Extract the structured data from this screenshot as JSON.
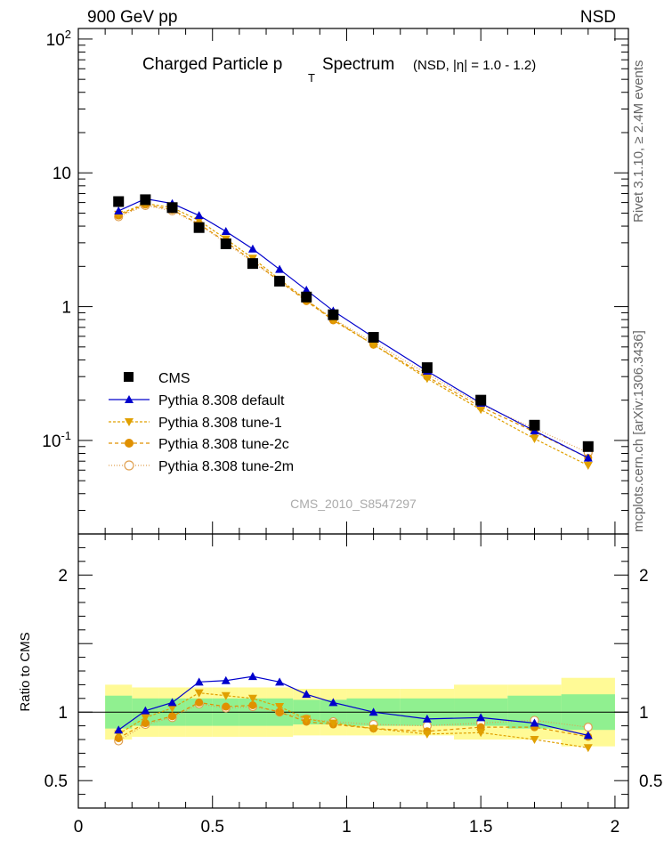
{
  "header": {
    "left": "900 GeV pp",
    "right": "NSD"
  },
  "title": {
    "main": "Charged Particle p",
    "sub": "T",
    "tail": "Spectrum",
    "note": "(NSD, |η| = 1.0 - 1.2)"
  },
  "side": {
    "upper": "Rivet 3.1.10, ≥ 2.4M events",
    "lower": "mcplots.cern.ch [arXiv:1306.3436]"
  },
  "watermark": "CMS_2010_S8547297",
  "colors": {
    "cms": "#000000",
    "default": "#0000cc",
    "tune1": "#e0a000",
    "tune2c": "#e09000",
    "tune2m": "#e0a050",
    "band_inner": "#90f090",
    "band_outer": "#fffa96"
  },
  "chart_data": [
    {
      "type": "scatter",
      "title": "Charged Particle pT Spectrum (NSD, |η| = 1.0 - 1.2)",
      "yscale": "log",
      "ylim": [
        0.02,
        120
      ],
      "xlim": [
        0,
        2.05
      ],
      "ytick_labels": [
        "10^-1",
        "1",
        "10",
        "10^2"
      ],
      "legend_position": "bottom-left",
      "x": [
        0.15,
        0.25,
        0.35,
        0.45,
        0.55,
        0.65,
        0.75,
        0.85,
        0.95,
        1.1,
        1.3,
        1.5,
        1.7,
        1.9
      ],
      "series": [
        {
          "name": "CMS",
          "marker": "square",
          "values": [
            6.1,
            6.3,
            5.5,
            3.9,
            2.95,
            2.1,
            1.55,
            1.18,
            0.87,
            0.59,
            0.35,
            0.2,
            0.13,
            0.09
          ]
        },
        {
          "name": "Pythia 8.308 default",
          "marker": "triangle-up",
          "values": [
            5.2,
            6.4,
            5.9,
            4.8,
            3.65,
            2.7,
            1.9,
            1.33,
            0.93,
            0.59,
            0.33,
            0.19,
            0.118,
            0.074
          ]
        },
        {
          "name": "Pythia 8.308 tune-1",
          "marker": "triangle-down",
          "values": [
            4.9,
            5.9,
            5.5,
            4.4,
            3.2,
            2.3,
            1.6,
            1.12,
            0.8,
            0.52,
            0.29,
            0.17,
            0.103,
            0.065
          ]
        },
        {
          "name": "Pythia 8.308 tune-2c",
          "marker": "circle-filled",
          "values": [
            4.8,
            5.8,
            5.3,
            4.15,
            3.05,
            2.2,
            1.55,
            1.1,
            0.79,
            0.52,
            0.3,
            0.178,
            0.116,
            0.074
          ]
        },
        {
          "name": "Pythia 8.308 tune-2m",
          "marker": "circle-open",
          "values": [
            4.7,
            5.7,
            5.2,
            4.1,
            3.0,
            2.15,
            1.55,
            1.12,
            0.81,
            0.54,
            0.315,
            0.185,
            0.123,
            0.081
          ]
        }
      ]
    },
    {
      "type": "line",
      "ylabel": "Ratio to CMS",
      "ylim": [
        0.3,
        2.3
      ],
      "xlim": [
        0,
        2.05
      ],
      "xtick_labels": [
        "0",
        "0.5",
        "1",
        "1.5",
        "2"
      ],
      "ytick_labels": [
        "0.5",
        "1",
        "2"
      ],
      "x": [
        0.15,
        0.25,
        0.35,
        0.45,
        0.55,
        0.65,
        0.75,
        0.85,
        0.95,
        1.1,
        1.3,
        1.5,
        1.7,
        1.9
      ],
      "bands": {
        "edges": [
          0.1,
          0.2,
          0.3,
          0.4,
          0.5,
          0.6,
          0.7,
          0.8,
          0.9,
          1.0,
          1.2,
          1.4,
          1.6,
          1.8,
          2.0
        ],
        "inner": [
          0.12,
          0.1,
          0.1,
          0.1,
          0.1,
          0.1,
          0.1,
          0.09,
          0.09,
          0.1,
          0.1,
          0.1,
          0.12,
          0.13
        ],
        "outer": [
          0.2,
          0.18,
          0.18,
          0.18,
          0.18,
          0.18,
          0.18,
          0.17,
          0.17,
          0.17,
          0.17,
          0.2,
          0.2,
          0.25
        ]
      },
      "series": [
        {
          "name": "Pythia 8.308 default",
          "values": [
            0.87,
            1.01,
            1.07,
            1.22,
            1.23,
            1.26,
            1.22,
            1.13,
            1.07,
            1.0,
            0.95,
            0.96,
            0.92,
            0.83
          ]
        },
        {
          "name": "Pythia 8.308 tune-1",
          "values": [
            0.84,
            0.96,
            1.03,
            1.14,
            1.12,
            1.1,
            1.04,
            0.95,
            0.92,
            0.88,
            0.84,
            0.85,
            0.8,
            0.74
          ]
        },
        {
          "name": "Pythia 8.308 tune-2c",
          "values": [
            0.81,
            0.92,
            0.97,
            1.07,
            1.04,
            1.05,
            1.0,
            0.93,
            0.91,
            0.88,
            0.86,
            0.89,
            0.89,
            0.82
          ]
        },
        {
          "name": "Pythia 8.308 tune-2m",
          "values": [
            0.79,
            0.91,
            0.96,
            1.06,
            1.03,
            1.04,
            1.0,
            0.95,
            0.93,
            0.91,
            0.9,
            0.92,
            0.94,
            0.89
          ]
        }
      ]
    }
  ]
}
